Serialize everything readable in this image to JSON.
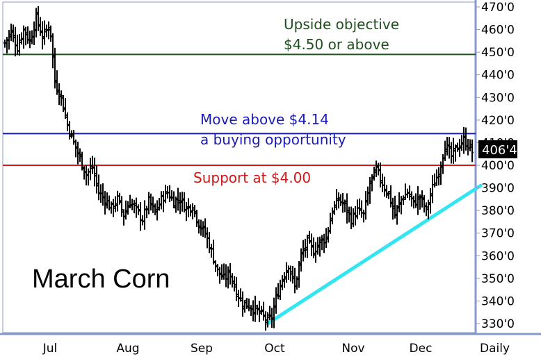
{
  "chart_data": {
    "type": "bar",
    "subtype": "ohlc",
    "title": "March Corn",
    "frequency": "Daily",
    "ylim": [
      330,
      470
    ],
    "y_ticks": [
      "470'0",
      "460'0",
      "450'0",
      "440'0",
      "430'0",
      "420'0",
      "410'0",
      "400'0",
      "390'0",
      "380'0",
      "370'0",
      "360'0",
      "350'0",
      "340'0",
      "330'0"
    ],
    "x_ticks": [
      "Jul",
      "Aug",
      "Sep",
      "Oct",
      "Nov",
      "Dec"
    ],
    "last_price_label": "406'4",
    "last_price_value": 406.5,
    "lines": {
      "objective": {
        "value": 449,
        "color": "#1f4f1f",
        "text1": "Upside objective",
        "text2": "$4.50 or above"
      },
      "buy": {
        "value": 414,
        "color": "#1a1ab4",
        "text1": "Move above $4.14",
        "text2": "a buying opportunity"
      },
      "support": {
        "value": 400,
        "color": "#d01818",
        "text1": "Support at $4.00"
      }
    },
    "trendline": {
      "color": "#33e5f0",
      "from": {
        "index": 126,
        "price": 330
      },
      "to": {
        "index": 224,
        "price": 391
      }
    },
    "anchors": [
      [
        0,
        454
      ],
      [
        3,
        459
      ],
      [
        6,
        452
      ],
      [
        9,
        460
      ],
      [
        12,
        455
      ],
      [
        15,
        465
      ],
      [
        18,
        457
      ],
      [
        21,
        461
      ],
      [
        22,
        458
      ],
      [
        24,
        437
      ],
      [
        27,
        430
      ],
      [
        30,
        418
      ],
      [
        33,
        410
      ],
      [
        36,
        403
      ],
      [
        39,
        396
      ],
      [
        42,
        399
      ],
      [
        45,
        388
      ],
      [
        48,
        385
      ],
      [
        51,
        381
      ],
      [
        54,
        385
      ],
      [
        57,
        378
      ],
      [
        60,
        384
      ],
      [
        63,
        380
      ],
      [
        66,
        376
      ],
      [
        69,
        384
      ],
      [
        72,
        379
      ],
      [
        75,
        385
      ],
      [
        78,
        388
      ],
      [
        81,
        384
      ],
      [
        84,
        385
      ],
      [
        87,
        381
      ],
      [
        90,
        382
      ],
      [
        93,
        374
      ],
      [
        96,
        370
      ],
      [
        99,
        362
      ],
      [
        102,
        353
      ],
      [
        105,
        350
      ],
      [
        108,
        352
      ],
      [
        111,
        344
      ],
      [
        114,
        339
      ],
      [
        117,
        338
      ],
      [
        120,
        336
      ],
      [
        123,
        334
      ],
      [
        126,
        331
      ],
      [
        128,
        333
      ],
      [
        130,
        341
      ],
      [
        133,
        350
      ],
      [
        136,
        356
      ],
      [
        139,
        346
      ],
      [
        142,
        360
      ],
      [
        145,
        366
      ],
      [
        148,
        362
      ],
      [
        151,
        366
      ],
      [
        154,
        368
      ],
      [
        157,
        380
      ],
      [
        160,
        385
      ],
      [
        163,
        382
      ],
      [
        166,
        376
      ],
      [
        169,
        380
      ],
      [
        172,
        378
      ],
      [
        175,
        392
      ],
      [
        178,
        398
      ],
      [
        181,
        392
      ],
      [
        184,
        387
      ],
      [
        187,
        378
      ],
      [
        190,
        385
      ],
      [
        193,
        388
      ],
      [
        196,
        383
      ],
      [
        199,
        386
      ],
      [
        202,
        380
      ],
      [
        205,
        390
      ],
      [
        208,
        397
      ],
      [
        211,
        409
      ],
      [
        214,
        404
      ],
      [
        217,
        408
      ],
      [
        220,
        411
      ],
      [
        222,
        409
      ],
      [
        224,
        406
      ]
    ]
  }
}
